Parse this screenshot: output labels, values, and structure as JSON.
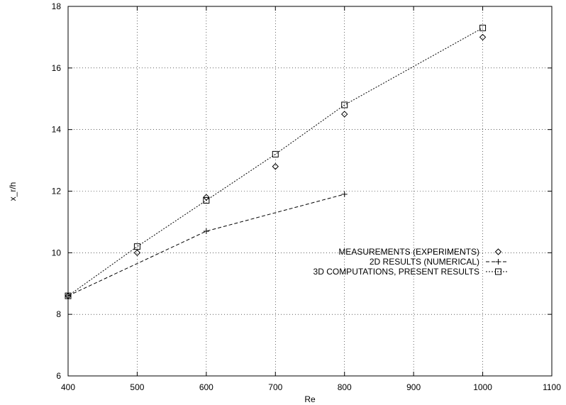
{
  "chart_data": {
    "type": "line",
    "title": "",
    "xlabel": "Re",
    "ylabel": "x_r/h",
    "xlim": [
      400,
      1100
    ],
    "ylim": [
      6,
      18
    ],
    "xticks": [
      400,
      500,
      600,
      700,
      800,
      900,
      1000,
      1100
    ],
    "yticks": [
      6,
      8,
      10,
      12,
      14,
      16,
      18
    ],
    "grid": true,
    "legend_position": "center-right",
    "series": [
      {
        "name": "MEASUREMENTS (EXPERIMENTS)",
        "marker": "diamond",
        "line": "none",
        "x": [
          400,
          500,
          600,
          700,
          800,
          1000
        ],
        "y": [
          8.6,
          10.0,
          11.8,
          12.8,
          14.5,
          17.0
        ]
      },
      {
        "name": "2D RESULTS (NUMERICAL)",
        "marker": "plus",
        "line": "dashed",
        "x": [
          400,
          600,
          800
        ],
        "y": [
          8.6,
          10.7,
          11.9
        ]
      },
      {
        "name": "3D COMPUTATIONS, PRESENT RESULTS",
        "marker": "square",
        "line": "dotted",
        "x": [
          400,
          500,
          600,
          700,
          800,
          1000
        ],
        "y": [
          8.6,
          10.2,
          11.7,
          13.2,
          14.8,
          17.3
        ]
      }
    ]
  }
}
